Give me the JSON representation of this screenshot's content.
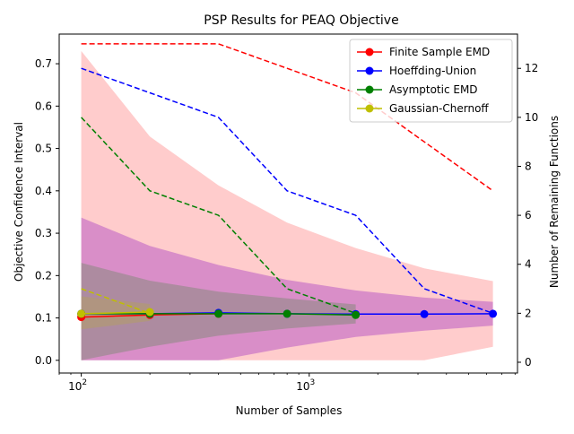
{
  "chart_data": {
    "type": "line",
    "title": "PSP Results for PEAQ Objective",
    "xlabel": "Number of Samples",
    "ylabel": "Objective Confidence Interval",
    "y2label": "Number of Remaining Functions",
    "x_scale": "log",
    "xlim": [
      80,
      8200
    ],
    "ylim": [
      -0.03,
      0.77
    ],
    "y2lim": [
      -0.44,
      13.4
    ],
    "grid": false,
    "legend_position": "top-right",
    "x_ticks": [
      {
        "value": 100,
        "base": "10",
        "exp": "2"
      },
      {
        "value": 1000,
        "base": "10",
        "exp": "3"
      }
    ],
    "y_ticks": [
      "0.0",
      "0.1",
      "0.2",
      "0.3",
      "0.4",
      "0.5",
      "0.6",
      "0.7"
    ],
    "y2_ticks": [
      "0",
      "2",
      "4",
      "6",
      "8",
      "10",
      "12"
    ],
    "series": [
      {
        "name": "Finite Sample EMD",
        "color": "#ff0000",
        "fill": "#ff0000",
        "fill_opacity": 0.2,
        "x": [
          100,
          200,
          400
        ],
        "y": [
          0.102,
          0.107,
          0.11
        ],
        "band_x": [
          100,
          200,
          400,
          800,
          1600,
          3200,
          6400
        ],
        "band_lower": [
          0.0,
          0.0,
          0.0,
          0.0,
          0.0,
          0.0,
          0.032
        ],
        "band_upper": [
          0.73,
          0.528,
          0.413,
          0.325,
          0.265,
          0.217,
          0.187
        ],
        "remaining_x": [
          100,
          200,
          400,
          800,
          1600,
          3200,
          6400
        ],
        "remaining": [
          13,
          13,
          13,
          12,
          11,
          9,
          7
        ]
      },
      {
        "name": "Hoeffding-Union",
        "color": "#0000ff",
        "fill": "#8000c0",
        "fill_opacity": 0.3,
        "x": [
          100,
          200,
          400,
          800,
          1600,
          3200,
          6400
        ],
        "y": [
          0.11,
          0.11,
          0.112,
          0.11,
          0.109,
          0.109,
          0.11
        ],
        "band_x": [
          100,
          200,
          400,
          800,
          1600,
          3200,
          6400
        ],
        "band_lower": [
          0.0,
          0.0,
          0.0,
          0.03,
          0.055,
          0.07,
          0.082
        ],
        "band_upper": [
          0.337,
          0.27,
          0.225,
          0.19,
          0.165,
          0.148,
          0.138
        ],
        "remaining_x": [
          100,
          200,
          400,
          800,
          1600,
          3200,
          6400
        ],
        "remaining": [
          12,
          11,
          10,
          7,
          6,
          3,
          2
        ]
      },
      {
        "name": "Asymptotic EMD",
        "color": "#008000",
        "fill": "#008000",
        "fill_opacity": 0.2,
        "x": [
          100,
          200,
          400,
          800,
          1600
        ],
        "y": [
          0.11,
          0.11,
          0.11,
          0.11,
          0.107
        ],
        "band_x": [
          100,
          200,
          400,
          800,
          1600
        ],
        "band_lower": [
          0.0,
          0.032,
          0.058,
          0.075,
          0.087
        ],
        "band_upper": [
          0.23,
          0.188,
          0.162,
          0.146,
          0.132
        ],
        "remaining_x": [
          100,
          200,
          400,
          800,
          1600
        ],
        "remaining": [
          10,
          7,
          6,
          3,
          2
        ]
      },
      {
        "name": "Gaussian-Chernoff",
        "color": "#bfbf00",
        "fill": "#bfbf00",
        "fill_opacity": 0.2,
        "x": [
          100,
          200
        ],
        "y": [
          0.11,
          0.114
        ],
        "band_x": [
          100,
          200
        ],
        "band_lower": [
          0.073,
          0.093
        ],
        "band_upper": [
          0.151,
          0.133
        ],
        "remaining_x": [
          100,
          200
        ],
        "remaining": [
          3,
          2
        ]
      }
    ]
  }
}
